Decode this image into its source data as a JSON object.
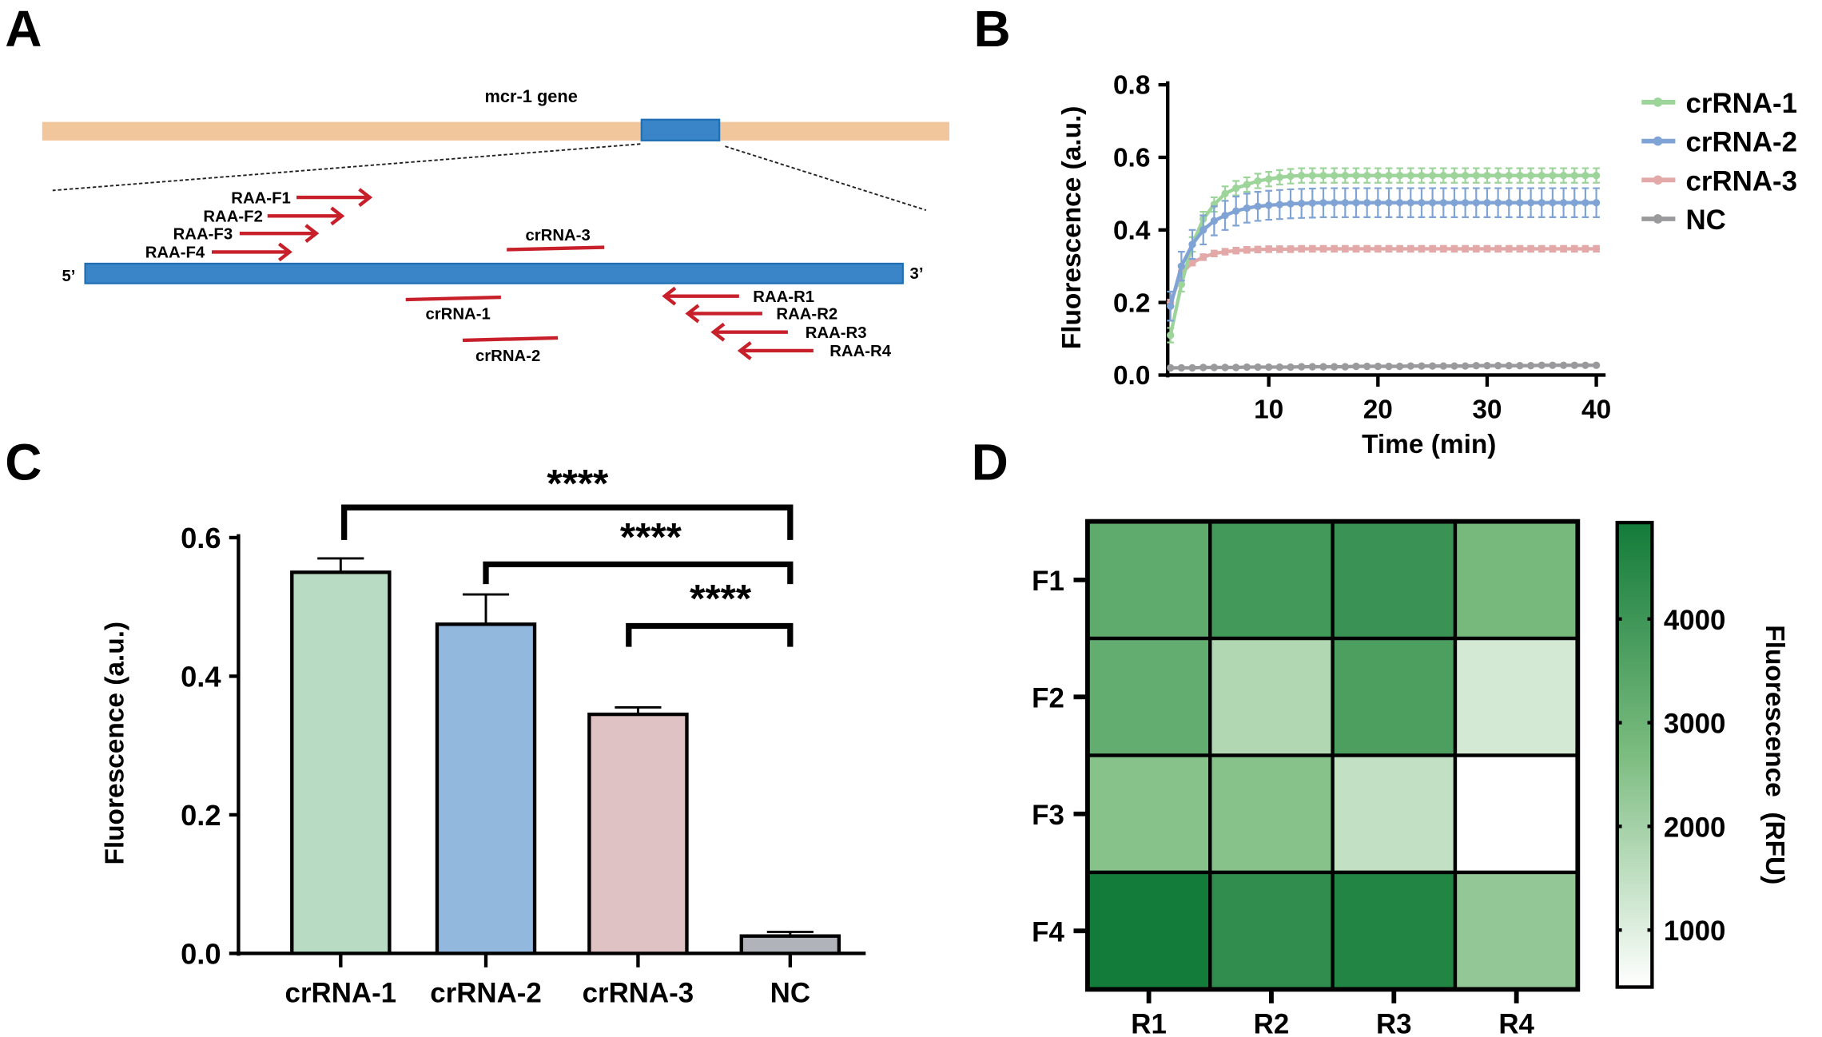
{
  "panels": {
    "a": "A",
    "b": "B",
    "c": "C",
    "d": "D"
  },
  "diagram": {
    "gene_label": "mcr-1 gene",
    "five_prime": "5’",
    "three_prime": "3’",
    "forward_primers": [
      "RAA-F1",
      "RAA-F2",
      "RAA-F3",
      "RAA-F4"
    ],
    "reverse_primers": [
      "RAA-R1",
      "RAA-R2",
      "RAA-R3",
      "RAA-R4"
    ],
    "crrnas": [
      "crRNA-1",
      "crRNA-2",
      "crRNA-3"
    ],
    "colors": {
      "gene": "#f2c69c",
      "target": "#3a85c7",
      "primer": "#c8202a"
    }
  },
  "chart_data": [
    {
      "type": "line",
      "title": "",
      "xlabel": "Time (min)",
      "ylabel": "Fluorescence (a.u.)",
      "xlim": [
        0,
        41
      ],
      "ylim": [
        0,
        0.8
      ],
      "xticks": [
        "10",
        "20",
        "30",
        "40"
      ],
      "yticks": [
        "0.0",
        "0.2",
        "0.4",
        "0.6",
        "0.8"
      ],
      "legend_position": "right",
      "x": [
        1,
        2,
        3,
        4,
        5,
        6,
        7,
        8,
        9,
        10,
        11,
        12,
        13,
        14,
        15,
        16,
        17,
        18,
        19,
        20,
        21,
        22,
        23,
        24,
        25,
        26,
        27,
        28,
        29,
        30,
        31,
        32,
        33,
        34,
        35,
        36,
        37,
        38,
        39,
        40
      ],
      "series": [
        {
          "name": "crRNA-1",
          "color": "#9dd49a",
          "err": 0.02,
          "values": [
            0.11,
            0.25,
            0.36,
            0.43,
            0.47,
            0.5,
            0.515,
            0.525,
            0.535,
            0.54,
            0.545,
            0.548,
            0.55,
            0.55,
            0.55,
            0.55,
            0.55,
            0.55,
            0.55,
            0.55,
            0.55,
            0.55,
            0.55,
            0.55,
            0.55,
            0.55,
            0.55,
            0.55,
            0.55,
            0.55,
            0.55,
            0.55,
            0.55,
            0.55,
            0.55,
            0.55,
            0.55,
            0.55,
            0.55,
            0.55
          ]
        },
        {
          "name": "crRNA-2",
          "color": "#7fa3d4",
          "err": 0.04,
          "values": [
            0.19,
            0.3,
            0.36,
            0.4,
            0.425,
            0.44,
            0.452,
            0.46,
            0.465,
            0.468,
            0.47,
            0.472,
            0.473,
            0.474,
            0.475,
            0.475,
            0.475,
            0.475,
            0.475,
            0.475,
            0.475,
            0.475,
            0.475,
            0.475,
            0.475,
            0.475,
            0.475,
            0.475,
            0.475,
            0.475,
            0.475,
            0.475,
            0.475,
            0.475,
            0.475,
            0.475,
            0.475,
            0.475,
            0.475,
            0.475
          ]
        },
        {
          "name": "crRNA-3",
          "color": "#e2a9a8",
          "err": 0.008,
          "values": [
            0.2,
            0.28,
            0.31,
            0.325,
            0.335,
            0.34,
            0.343,
            0.345,
            0.346,
            0.347,
            0.347,
            0.347,
            0.348,
            0.348,
            0.348,
            0.348,
            0.348,
            0.348,
            0.348,
            0.348,
            0.348,
            0.348,
            0.348,
            0.348,
            0.348,
            0.348,
            0.348,
            0.348,
            0.348,
            0.348,
            0.348,
            0.348,
            0.348,
            0.348,
            0.348,
            0.348,
            0.348,
            0.348,
            0.348,
            0.348
          ]
        },
        {
          "name": "NC",
          "color": "#9a9a9c",
          "err": 0.002,
          "values": [
            0.02,
            0.02,
            0.02,
            0.021,
            0.021,
            0.021,
            0.021,
            0.022,
            0.022,
            0.022,
            0.022,
            0.022,
            0.023,
            0.023,
            0.023,
            0.023,
            0.023,
            0.024,
            0.024,
            0.024,
            0.024,
            0.024,
            0.025,
            0.025,
            0.025,
            0.025,
            0.025,
            0.025,
            0.026,
            0.026,
            0.026,
            0.026,
            0.026,
            0.026,
            0.027,
            0.027,
            0.027,
            0.027,
            0.027,
            0.027
          ]
        }
      ]
    },
    {
      "type": "bar",
      "title": "",
      "xlabel": "",
      "ylabel": "Fluorescence (a.u.)",
      "ylim": [
        0,
        0.6
      ],
      "yticks": [
        "0.0",
        "0.2",
        "0.4",
        "0.6"
      ],
      "categories": [
        "crRNA-1",
        "crRNA-2",
        "crRNA-3",
        "NC"
      ],
      "values": [
        0.55,
        0.475,
        0.345,
        0.025
      ],
      "errors": [
        0.02,
        0.043,
        0.01,
        0.006
      ],
      "colors": [
        "#b8dbc4",
        "#93b8dd",
        "#dfc2c3",
        "#b0b4ba"
      ],
      "significance": [
        {
          "from": "crRNA-1",
          "to": "NC",
          "label": "****"
        },
        {
          "from": "crRNA-2",
          "to": "NC",
          "label": "****"
        },
        {
          "from": "crRNA-3",
          "to": "NC",
          "label": "****"
        }
      ]
    },
    {
      "type": "heatmap",
      "title": "",
      "rows": [
        "F1",
        "F2",
        "F3",
        "F4"
      ],
      "cols": [
        "R1",
        "R2",
        "R3",
        "R4"
      ],
      "values": [
        [
          3300,
          3900,
          4100,
          2800
        ],
        [
          3200,
          1800,
          3700,
          1200
        ],
        [
          2500,
          2500,
          1500,
          450
        ],
        [
          4900,
          4300,
          4600,
          2300
        ]
      ],
      "colorbar": {
        "label": "Fluorescence  (RFU)",
        "range": [
          450,
          4930
        ],
        "ticks": [
          "1000",
          "2000",
          "3000",
          "4000"
        ],
        "low_color": "#ffffff",
        "high_color": "#137b3a"
      }
    }
  ]
}
